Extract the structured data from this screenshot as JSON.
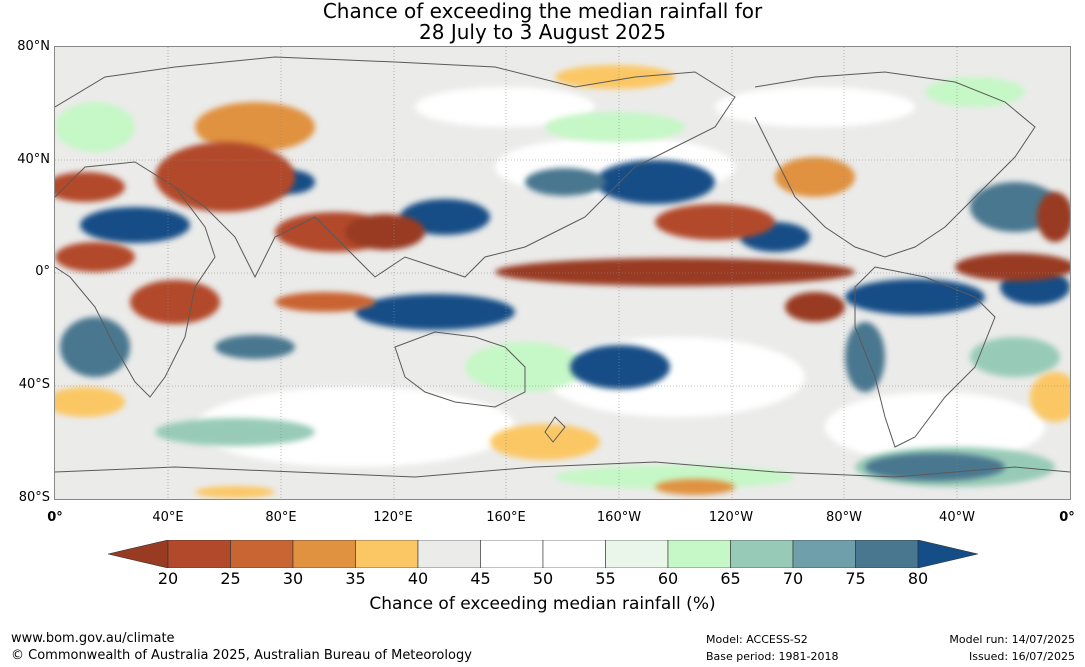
{
  "title": {
    "line1": "Chance of exceeding the median rainfall for",
    "line2": "28 July to 3 August 2025"
  },
  "map": {
    "lat_labels": [
      "80°N",
      "40°N",
      "0°",
      "40°S",
      "80°S"
    ],
    "lon_labels": [
      "0°",
      "40°E",
      "80°E",
      "120°E",
      "160°E",
      "160°W",
      "120°W",
      "80°W",
      "40°W",
      "0°"
    ],
    "colors": {
      "ocean_grey": "#ebebea",
      "coast": "#5a5a5a",
      "grid": "#8a8a8a"
    }
  },
  "legend": {
    "ticks": [
      "20",
      "25",
      "30",
      "35",
      "40",
      "45",
      "50",
      "55",
      "60",
      "65",
      "70",
      "75",
      "80"
    ],
    "label": "Chance of exceeding median rainfall (%)",
    "colors": [
      "#993a22",
      "#b2492a",
      "#c96433",
      "#e09240",
      "#fbc765",
      "#ebebea",
      "#ffffff",
      "#ffffff",
      "#eaf6e9",
      "#c6f7c6",
      "#98cbb7",
      "#6f9faa",
      "#48778f",
      "#154d86"
    ]
  },
  "footer": {
    "website": "www.bom.gov.au/climate",
    "copyright": "© Commonwealth of Australia 2025, Australian Bureau of Meteorology",
    "model": "Model: ACCESS-S2",
    "base_period": "Base period: 1981-2018",
    "model_run": "Model run: 14/07/2025",
    "issued": "Issued: 16/07/2025"
  }
}
